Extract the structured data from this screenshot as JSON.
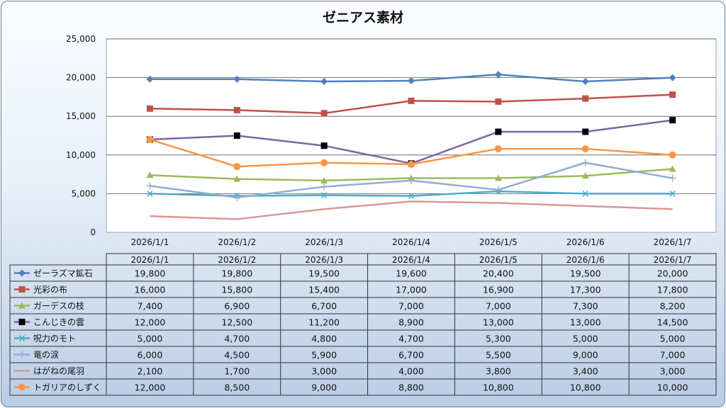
{
  "chart_data": {
    "type": "line",
    "title": "ゼニアス素材",
    "xlabel": "",
    "ylabel": "",
    "ylim": [
      0,
      25000
    ],
    "yticks": [
      "0",
      "5,000",
      "10,000",
      "15,000",
      "20,000",
      "25,000"
    ],
    "grid": true,
    "legend_placement": "data-table-left",
    "categories": [
      "2026/1/1",
      "2026/1/2",
      "2026/1/3",
      "2026/1/4",
      "2026/1/5",
      "2026/1/6",
      "2026/1/7"
    ],
    "series": [
      {
        "name": "ゼーラズマ鉱石",
        "color": "#4f81bd",
        "marker": "diamond",
        "values": [
          19800,
          19800,
          19500,
          19600,
          20400,
          19500,
          20000
        ],
        "labels": [
          "19,800",
          "19,800",
          "19,500",
          "19,600",
          "20,400",
          "19,500",
          "20,000"
        ]
      },
      {
        "name": "光彩の布",
        "color": "#c0504d",
        "marker": "square",
        "values": [
          16000,
          15800,
          15400,
          17000,
          16900,
          17300,
          17800
        ],
        "labels": [
          "16,000",
          "15,800",
          "15,400",
          "17,000",
          "16,900",
          "17,300",
          "17,800"
        ]
      },
      {
        "name": "ガーデスの枝",
        "color": "#9bbb59",
        "marker": "triangle",
        "values": [
          7400,
          6900,
          6700,
          7000,
          7000,
          7300,
          8200
        ],
        "labels": [
          "7,400",
          "6,900",
          "6,700",
          "7,000",
          "7,000",
          "7,300",
          "8,200"
        ]
      },
      {
        "name": "こんじきの雲",
        "color": "#8064a2",
        "marker": "blacksquare",
        "values": [
          12000,
          12500,
          11200,
          8900,
          13000,
          13000,
          14500
        ],
        "labels": [
          "12,000",
          "12,500",
          "11,200",
          "8,900",
          "13,000",
          "13,000",
          "14,500"
        ]
      },
      {
        "name": "呪力のモト",
        "color": "#4bacc6",
        "marker": "asterisk",
        "values": [
          5000,
          4700,
          4800,
          4700,
          5300,
          5000,
          5000
        ],
        "labels": [
          "5,000",
          "4,700",
          "4,800",
          "4,700",
          "5,300",
          "5,000",
          "5,000"
        ]
      },
      {
        "name": "竜の涙",
        "color": "#94abd3",
        "marker": "plus",
        "values": [
          6000,
          4500,
          5900,
          6700,
          5500,
          9000,
          7000
        ],
        "labels": [
          "6,000",
          "4,500",
          "5,900",
          "6,700",
          "5,500",
          "9,000",
          "7,000"
        ]
      },
      {
        "name": "はがねの尾羽",
        "color": "#d99694",
        "marker": "none",
        "values": [
          2100,
          1700,
          3000,
          4000,
          3800,
          3400,
          3000
        ],
        "labels": [
          "2,100",
          "1,700",
          "3,000",
          "4,000",
          "3,800",
          "3,400",
          "3,000"
        ]
      },
      {
        "name": "トガリアのしずく",
        "color": "#f79646",
        "marker": "circle",
        "values": [
          12000,
          8500,
          9000,
          8800,
          10800,
          10800,
          10000
        ],
        "labels": [
          "12,000",
          "8,500",
          "9,000",
          "8,800",
          "10,800",
          "10,800",
          "10,000"
        ]
      }
    ]
  }
}
